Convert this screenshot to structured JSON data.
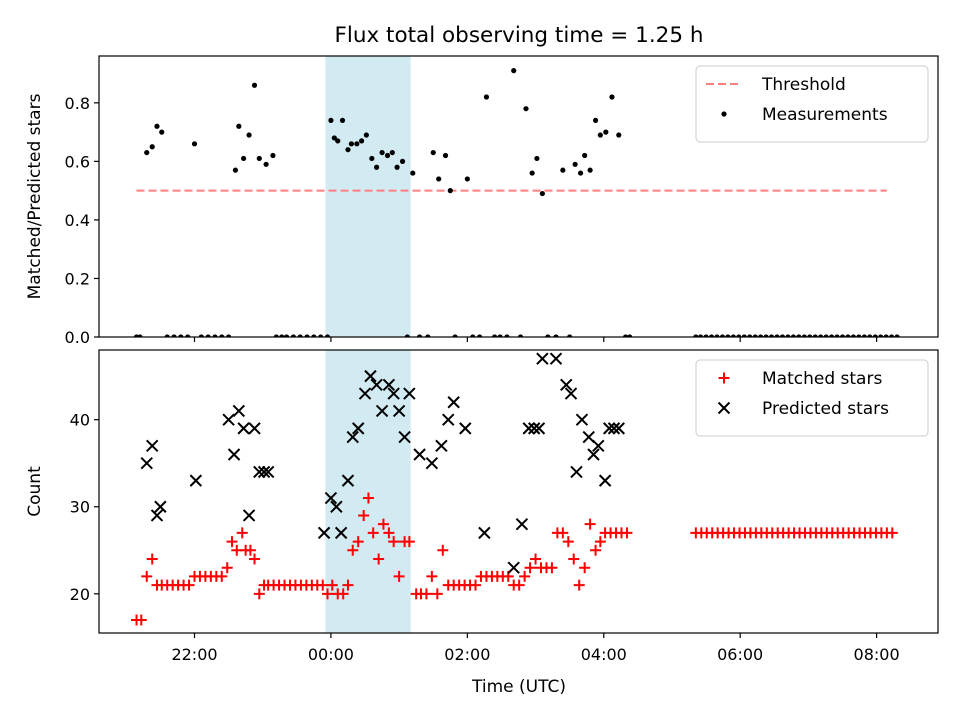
{
  "figure_title": "Flux total observing time = 1.25 h",
  "x_axis": {
    "label": "Time (UTC)",
    "unit": "hours relative to 00:00 UTC",
    "range": [
      -3.4,
      8.9
    ],
    "ticks": [
      {
        "value": -2,
        "label": "22:00"
      },
      {
        "value": 0,
        "label": "00:00"
      },
      {
        "value": 2,
        "label": "02:00"
      },
      {
        "value": 4,
        "label": "04:00"
      },
      {
        "value": 6,
        "label": "06:00"
      },
      {
        "value": 8,
        "label": "08:00"
      }
    ]
  },
  "highlight_span": {
    "x0": -0.08,
    "x1": 1.17,
    "color": "#add8e6"
  },
  "colors": {
    "threshold": "#ff7f7f",
    "measurements": "#000000",
    "matched": "#ff0000",
    "predicted": "#000000"
  },
  "chart_data": [
    {
      "type": "scatter",
      "ylabel": "Matched/Predicted stars",
      "ylim": [
        0,
        0.96
      ],
      "yticks": [
        0.0,
        0.2,
        0.4,
        0.6,
        0.8
      ],
      "ytick_labels": [
        "0.0",
        "0.2",
        "0.4",
        "0.6",
        "0.8"
      ],
      "legend": {
        "placement": "top-right",
        "entries": [
          "Threshold",
          "Measurements"
        ]
      },
      "threshold": {
        "name": "Threshold",
        "y": 0.5,
        "x": [
          -2.85,
          8.15
        ],
        "style": "dashed"
      },
      "series": [
        {
          "name": "Measurements",
          "marker": "dot",
          "x": [
            -2.85,
            -2.8,
            -2.7,
            -2.62,
            -2.55,
            -2.48,
            -2.4,
            -2.3,
            -2.2,
            -2.1,
            -2.0,
            -1.9,
            -1.8,
            -1.7,
            -1.6,
            -1.5,
            -1.4,
            -1.35,
            -1.28,
            -1.2,
            -1.12,
            -1.05,
            -0.95,
            -0.85,
            -0.8,
            -0.72,
            -0.65,
            -0.55,
            -0.45,
            -0.35,
            -0.25,
            -0.15,
            -0.05,
            0.0,
            0.05,
            0.1,
            0.17,
            0.25,
            0.3,
            0.38,
            0.45,
            0.52,
            0.6,
            0.67,
            0.75,
            0.83,
            0.9,
            0.97,
            1.05,
            1.12,
            1.2,
            1.3,
            1.42,
            1.5,
            1.58,
            1.68,
            1.75,
            1.82,
            2.0,
            2.08,
            2.18,
            2.28,
            2.4,
            2.48,
            2.58,
            2.68,
            2.78,
            2.86,
            2.95,
            3.02,
            3.1,
            3.18,
            3.3,
            3.4,
            3.5,
            3.58,
            3.66,
            3.72,
            3.8,
            3.88,
            3.95,
            4.03,
            4.12,
            4.22,
            4.32,
            4.38,
            5.35,
            5.42,
            5.5,
            5.58,
            5.66,
            5.74,
            5.82,
            5.9,
            5.98,
            6.06,
            6.14,
            6.22,
            6.3,
            6.38,
            6.46,
            6.54,
            6.62,
            6.7,
            6.78,
            6.86,
            6.94,
            7.02,
            7.1,
            7.18,
            7.26,
            7.34,
            7.42,
            7.5,
            7.58,
            7.66,
            7.74,
            7.82,
            7.9,
            7.98,
            8.06,
            8.14,
            8.22,
            8.3
          ],
          "y": [
            0.0,
            0.0,
            0.63,
            0.65,
            0.72,
            0.7,
            0.0,
            0.0,
            0.0,
            0.0,
            0.66,
            0.0,
            0.0,
            0.0,
            0.0,
            0.0,
            0.57,
            0.72,
            0.61,
            0.69,
            0.86,
            0.61,
            0.59,
            0.62,
            0.0,
            0.0,
            0.0,
            0.0,
            0.0,
            0.0,
            0.0,
            0.0,
            0.0,
            0.74,
            0.68,
            0.67,
            0.74,
            0.64,
            0.66,
            0.66,
            0.67,
            0.69,
            0.61,
            0.58,
            0.63,
            0.62,
            0.63,
            0.58,
            0.6,
            0.0,
            0.56,
            0.0,
            0.0,
            0.63,
            0.54,
            0.62,
            0.5,
            0.0,
            0.54,
            0.0,
            0.0,
            0.82,
            0.0,
            0.0,
            0.0,
            0.91,
            0.0,
            0.78,
            0.56,
            0.61,
            0.49,
            0.0,
            0.0,
            0.57,
            0.0,
            0.59,
            0.56,
            0.62,
            0.57,
            0.74,
            0.69,
            0.7,
            0.82,
            0.69,
            0.0,
            0.0,
            0.0,
            0.0,
            0.0,
            0.0,
            0.0,
            0.0,
            0.0,
            0.0,
            0.0,
            0.0,
            0.0,
            0.0,
            0.0,
            0.0,
            0.0,
            0.0,
            0.0,
            0.0,
            0.0,
            0.0,
            0.0,
            0.0,
            0.0,
            0.0,
            0.0,
            0.0,
            0.0,
            0.0,
            0.0,
            0.0,
            0.0,
            0.0,
            0.0,
            0.0,
            0.0,
            0.0,
            0.0,
            0.0
          ]
        }
      ]
    },
    {
      "type": "scatter",
      "ylabel": "Count",
      "ylim": [
        15.5,
        48.0
      ],
      "yticks": [
        20,
        30,
        40
      ],
      "ytick_labels": [
        "20",
        "30",
        "40"
      ],
      "legend": {
        "placement": "top-right",
        "entries": [
          "Matched stars",
          "Predicted stars"
        ]
      },
      "series": [
        {
          "name": "Matched stars",
          "marker": "plus",
          "x": [
            -2.85,
            -2.78,
            -2.7,
            -2.62,
            -2.55,
            -2.48,
            -2.4,
            -2.32,
            -2.24,
            -2.16,
            -2.08,
            -2.0,
            -1.92,
            -1.84,
            -1.76,
            -1.68,
            -1.6,
            -1.52,
            -1.45,
            -1.38,
            -1.3,
            -1.25,
            -1.18,
            -1.12,
            -1.05,
            -0.98,
            -0.92,
            -0.84,
            -0.76,
            -0.68,
            -0.6,
            -0.52,
            -0.44,
            -0.36,
            -0.28,
            -0.2,
            -0.12,
            -0.05,
            0.02,
            0.1,
            0.18,
            0.25,
            0.32,
            0.4,
            0.48,
            0.55,
            0.62,
            0.7,
            0.77,
            0.85,
            0.92,
            1.0,
            1.08,
            1.15,
            1.25,
            1.32,
            1.4,
            1.48,
            1.56,
            1.64,
            1.72,
            1.8,
            1.88,
            1.96,
            2.04,
            2.12,
            2.2,
            2.28,
            2.36,
            2.44,
            2.52,
            2.6,
            2.68,
            2.76,
            2.84,
            2.92,
            3.0,
            3.08,
            3.16,
            3.24,
            3.32,
            3.4,
            3.48,
            3.56,
            3.64,
            3.72,
            3.8,
            3.88,
            3.95,
            4.02,
            4.1,
            4.18,
            4.26,
            4.34,
            5.35,
            5.43,
            5.51,
            5.59,
            5.67,
            5.75,
            5.83,
            5.91,
            5.99,
            6.07,
            6.15,
            6.23,
            6.31,
            6.39,
            6.47,
            6.55,
            6.63,
            6.71,
            6.79,
            6.87,
            6.95,
            7.03,
            7.11,
            7.19,
            7.27,
            7.35,
            7.43,
            7.51,
            7.59,
            7.67,
            7.75,
            7.83,
            7.91,
            7.99,
            8.07,
            8.15,
            8.23
          ],
          "y": [
            17,
            17,
            22,
            24,
            21,
            21,
            21,
            21,
            21,
            21,
            21,
            22,
            22,
            22,
            22,
            22,
            22,
            23,
            26,
            25,
            27,
            25,
            25,
            24,
            20,
            21,
            21,
            21,
            21,
            21,
            21,
            21,
            21,
            21,
            21,
            21,
            21,
            20,
            21,
            20,
            20,
            21,
            25,
            26,
            29,
            31,
            27,
            24,
            28,
            27,
            26,
            22,
            26,
            26,
            20,
            20,
            20,
            22,
            20,
            25,
            21,
            21,
            21,
            21,
            21,
            21,
            22,
            22,
            22,
            22,
            22,
            22,
            21,
            21,
            22,
            23,
            24,
            23,
            23,
            23,
            27,
            27,
            26,
            24,
            21,
            23,
            28,
            25,
            26,
            27,
            27,
            27,
            27,
            27,
            27,
            27,
            27,
            27,
            27,
            27,
            27,
            27,
            27,
            27,
            27,
            27,
            27,
            27,
            27,
            27,
            27,
            27,
            27,
            27,
            27,
            27,
            27,
            27,
            27,
            27,
            27,
            27,
            27,
            27,
            27,
            27,
            27,
            27,
            27,
            27,
            27
          ]
        },
        {
          "name": "Predicted stars",
          "marker": "x",
          "x": [
            -2.7,
            -2.62,
            -2.55,
            -2.5,
            -1.98,
            -1.5,
            -1.42,
            -1.35,
            -1.28,
            -1.2,
            -1.12,
            -1.05,
            -0.98,
            -0.92,
            -0.1,
            0.0,
            0.08,
            0.15,
            0.25,
            0.32,
            0.4,
            0.5,
            0.58,
            0.67,
            0.75,
            0.85,
            0.92,
            1.0,
            1.08,
            1.15,
            1.3,
            1.48,
            1.62,
            1.72,
            1.8,
            1.97,
            2.25,
            2.68,
            2.8,
            2.9,
            2.98,
            3.05,
            3.1,
            3.3,
            3.45,
            3.52,
            3.6,
            3.68,
            3.78,
            3.85,
            3.92,
            4.02,
            4.08,
            4.15,
            4.22
          ],
          "y": [
            35,
            37,
            29,
            30,
            33,
            40,
            36,
            41,
            39,
            29,
            39,
            34,
            34,
            34,
            27,
            31,
            30,
            27,
            33,
            38,
            39,
            43,
            45,
            44,
            41,
            44,
            43,
            41,
            38,
            43,
            36,
            35,
            37,
            40,
            42,
            39,
            27,
            23,
            28,
            39,
            39,
            39,
            47,
            47,
            44,
            43,
            34,
            40,
            38,
            36,
            37,
            33,
            39,
            39,
            39
          ]
        }
      ]
    }
  ]
}
